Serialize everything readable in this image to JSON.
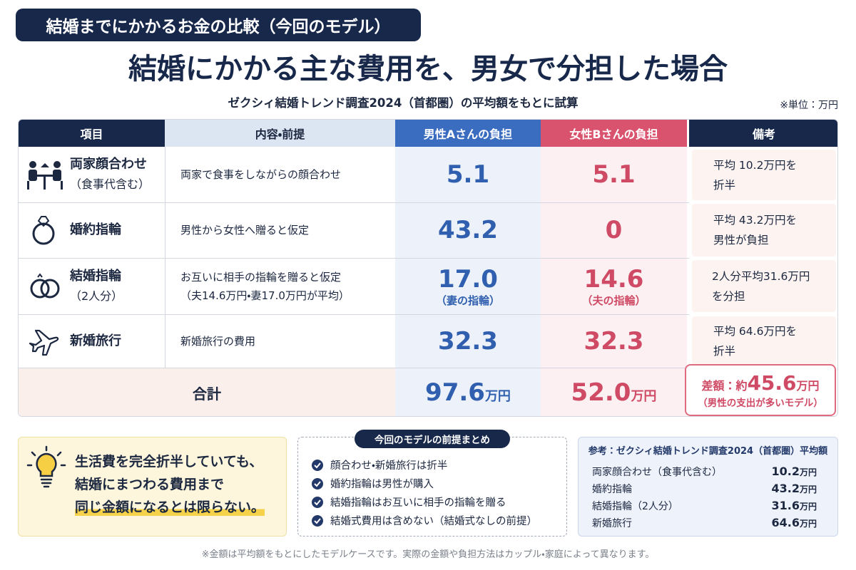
{
  "header": {
    "badge": "結婚までにかかるお金の比較（今回のモデル）",
    "title": "結婚にかかる主な費用を、男女で分担した場合",
    "subtitle": "ゼクシィ結婚トレンド調査2024（首都圏）の平均額をもとに試算",
    "unit_note": "※単位：万円"
  },
  "table": {
    "columns": [
      "項目",
      "内容・前提",
      "男性Aさんの負担",
      "女性Bさんの負担",
      "備考"
    ],
    "rows": [
      {
        "item": [
          "両家顔合わせ",
          "（食事代含む）"
        ],
        "detail": [
          "両家で食事をしながらの顔合わせ"
        ],
        "male": "5.1",
        "female": "5.1",
        "note": [
          "平均 10.2万円を",
          "折半"
        ]
      },
      {
        "item": [
          "婚約指輪"
        ],
        "detail": [
          "男性から女性へ贈ると仮定"
        ],
        "male": "43.2",
        "female": "0",
        "note": [
          "平均 43.2万円を",
          "男性が負担"
        ]
      },
      {
        "item": [
          "結婚指輪",
          "（2人分）"
        ],
        "detail": [
          "お互いに相手の指輪を贈ると仮定",
          "（夫14.6万円・妻17.0万円が平均）"
        ],
        "male": "17.0",
        "male_sub": "（妻の指輪）",
        "female": "14.6",
        "female_sub": "（夫の指輪）",
        "note": [
          "2人分平均31.6万円",
          "を分担"
        ]
      },
      {
        "item": [
          "新婚旅行"
        ],
        "detail": [
          "新婚旅行の費用"
        ],
        "male": "32.3",
        "female": "32.3",
        "note": [
          "平均 64.6万円を",
          "折半"
        ]
      }
    ],
    "total": {
      "label": "合計",
      "male": {
        "value": "97.6",
        "unit": "万円"
      },
      "female": {
        "value": "52.0",
        "unit": "万円"
      }
    },
    "difference": {
      "label": "差額：約",
      "value": "45.6",
      "unit": "万円",
      "note": "（男性の支出が多いモデル）"
    }
  },
  "message": {
    "lines": [
      "生活費を完全折半していても、",
      "結婚にまつわる費用まで",
      "同じ金額になるとは限らない。"
    ]
  },
  "summary": {
    "title": "今回のモデルの前提まとめ",
    "items": [
      "顔合わせ・新婚旅行は折半",
      "婚約指輪は男性が購入",
      "結婚指輪はお互いに相手の指輪を贈る",
      "結婚式費用は含めない（結婚式なしの前提）"
    ]
  },
  "reference": {
    "title": "参考：ゼクシィ結婚トレンド調査2024（首都圏）平均額",
    "rows": [
      {
        "label": "両家顔合わせ（食事代含む）",
        "value": "10.2",
        "unit": "万円"
      },
      {
        "label": "婚約指輪",
        "value": "43.2",
        "unit": "万円"
      },
      {
        "label": "結婚指輪（2人分）",
        "value": "31.6",
        "unit": "万円"
      },
      {
        "label": "新婚旅行",
        "value": "64.6",
        "unit": "万円"
      }
    ]
  },
  "footnote": "※金額は平均額をもとにしたモデルケースです。実際の金額や負担方法はカップル・家庭によって異なります。"
}
